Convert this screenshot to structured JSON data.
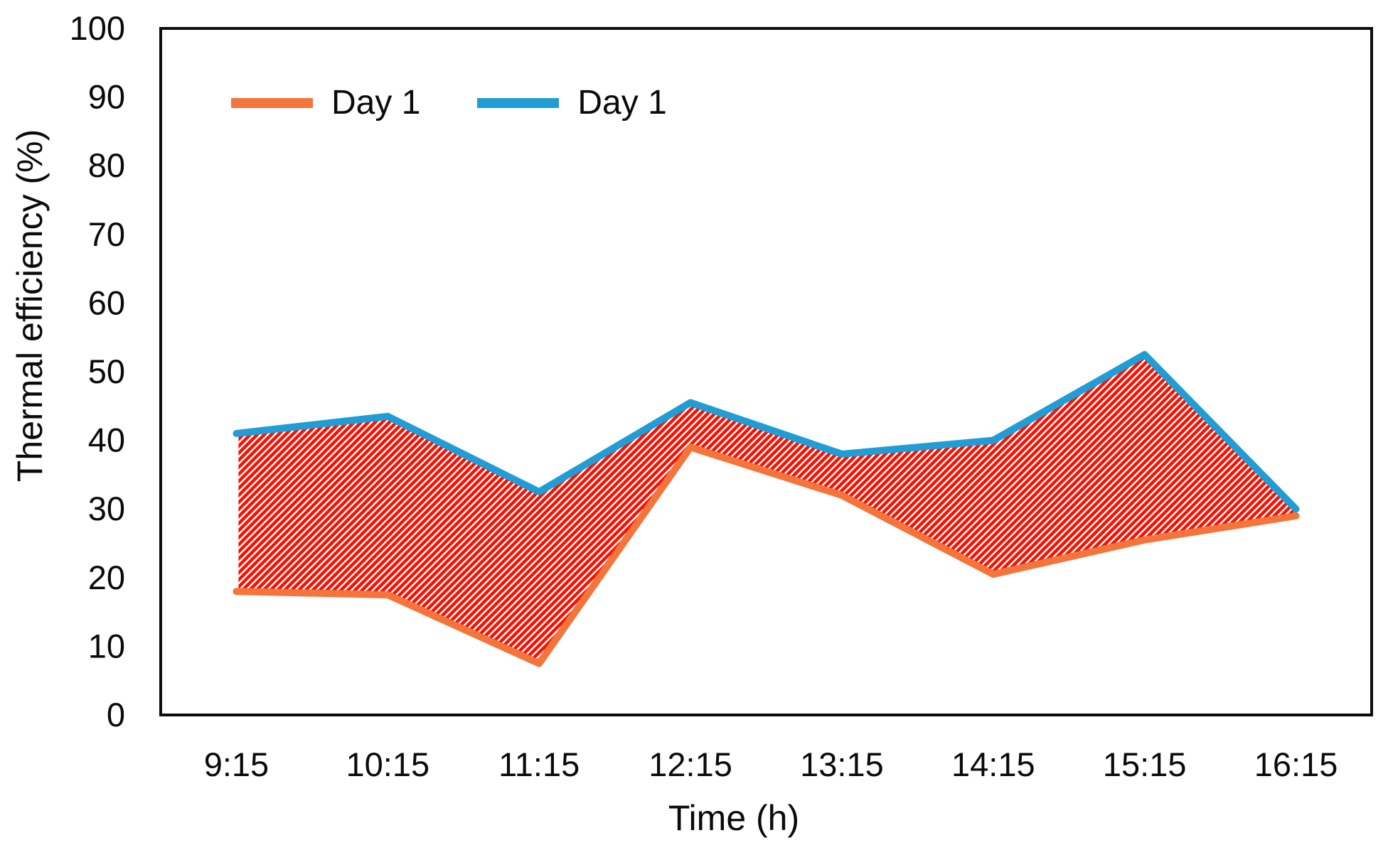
{
  "chart_data": {
    "type": "area",
    "subtype": "range-band-between-two-lines",
    "title": "",
    "x": [
      "9:15",
      "10:15",
      "11:15",
      "12:15",
      "13:15",
      "14:15",
      "15:15",
      "16:15"
    ],
    "xlabel": "Time (h)",
    "ylabel": "Thermal efficiency (%)",
    "ylim": [
      0,
      100
    ],
    "y_tick_labels": [
      "0",
      "10",
      "20",
      "30",
      "40",
      "50",
      "60",
      "70",
      "80",
      "90",
      "100"
    ],
    "grid": false,
    "legend_position": "top-left-inside",
    "background": "#FFFFFF",
    "axis_color": "#0B0B0B",
    "band_fill": {
      "pattern": "diagonal-hatch-45deg",
      "color": "#FA0F00",
      "gap_color": "#FFFFFF"
    },
    "series": [
      {
        "name": "Day 1",
        "role": "lower-bound",
        "color": "#F4743B",
        "values": [
          18,
          17.5,
          7.5,
          39,
          32,
          20.5,
          25.5,
          29
        ]
      },
      {
        "name": "Day 1",
        "role": "upper-bound",
        "color": "#219DD6",
        "values": [
          41,
          43.5,
          32.5,
          45.5,
          38,
          40,
          52.5,
          30
        ]
      }
    ]
  }
}
